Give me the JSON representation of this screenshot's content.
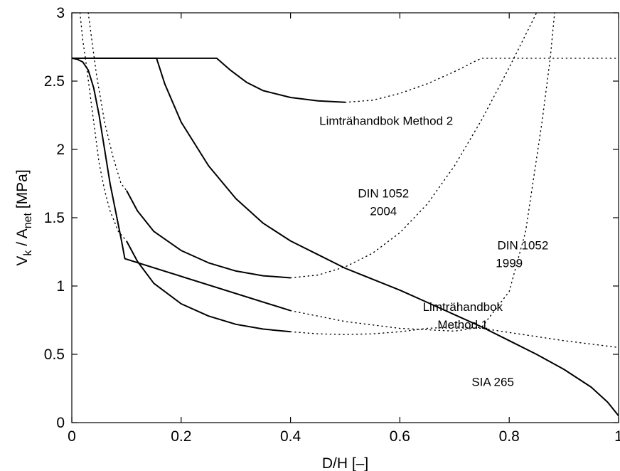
{
  "chart_data": {
    "type": "line",
    "xlabel": "D/H  [–]",
    "ylabel_main": "V",
    "ylabel_sub1": "k",
    "ylabel_mid": " / A",
    "ylabel_sub2": "net",
    "ylabel_unit": "  [MPa]",
    "xlim": [
      0,
      1
    ],
    "ylim": [
      0,
      3
    ],
    "x_ticks": [
      0,
      0.2,
      0.4,
      0.6,
      0.8,
      1
    ],
    "y_ticks": [
      0,
      0.5,
      1,
      1.5,
      2,
      2.5,
      3
    ],
    "grid": false,
    "series": [
      {
        "name": "Limträhandbok Method 2",
        "style": "solid",
        "points": [
          [
            0,
            2.667
          ],
          [
            0.265,
            2.667
          ],
          [
            0.29,
            2.58
          ],
          [
            0.32,
            2.49
          ],
          [
            0.35,
            2.43
          ],
          [
            0.4,
            2.38
          ],
          [
            0.45,
            2.355
          ],
          [
            0.5,
            2.345
          ]
        ]
      },
      {
        "name": "Limträhandbok Method 2",
        "style": "dotted",
        "points": [
          [
            0.5,
            2.345
          ],
          [
            0.55,
            2.36
          ],
          [
            0.6,
            2.41
          ],
          [
            0.65,
            2.48
          ],
          [
            0.7,
            2.57
          ],
          [
            0.74,
            2.65
          ],
          [
            0.75,
            2.667
          ],
          [
            1.0,
            2.667
          ]
        ]
      },
      {
        "name": "Limträhandbok Method 2",
        "style": "dotted",
        "points": [
          [
            0.015,
            3.0
          ],
          [
            0.02,
            2.8
          ],
          [
            0.025,
            2.667
          ]
        ]
      },
      {
        "name": "SIA 265",
        "style": "solid",
        "points": [
          [
            0,
            2.667
          ],
          [
            0.155,
            2.667
          ],
          [
            0.17,
            2.48
          ],
          [
            0.2,
            2.2
          ],
          [
            0.25,
            1.88
          ],
          [
            0.3,
            1.64
          ],
          [
            0.35,
            1.46
          ],
          [
            0.4,
            1.33
          ],
          [
            0.45,
            1.23
          ],
          [
            0.5,
            1.13
          ],
          [
            0.55,
            1.05
          ],
          [
            0.6,
            0.97
          ],
          [
            0.65,
            0.88
          ],
          [
            0.7,
            0.79
          ],
          [
            0.75,
            0.7
          ],
          [
            0.8,
            0.6
          ],
          [
            0.85,
            0.5
          ],
          [
            0.9,
            0.39
          ],
          [
            0.95,
            0.26
          ],
          [
            0.98,
            0.15
          ],
          [
            1.0,
            0.05
          ]
        ]
      },
      {
        "name": "DIN 1052 2004",
        "style": "solid",
        "points": [
          [
            0.1,
            1.7
          ],
          [
            0.12,
            1.55
          ],
          [
            0.15,
            1.4
          ],
          [
            0.2,
            1.26
          ],
          [
            0.25,
            1.17
          ],
          [
            0.3,
            1.11
          ],
          [
            0.35,
            1.075
          ],
          [
            0.4,
            1.06
          ]
        ]
      },
      {
        "name": "DIN 1052 2004",
        "style": "dotted",
        "points": [
          [
            0.4,
            1.06
          ],
          [
            0.45,
            1.08
          ],
          [
            0.5,
            1.14
          ],
          [
            0.55,
            1.24
          ],
          [
            0.6,
            1.39
          ],
          [
            0.65,
            1.6
          ],
          [
            0.7,
            1.88
          ],
          [
            0.75,
            2.22
          ],
          [
            0.8,
            2.6
          ],
          [
            0.84,
            2.92
          ],
          [
            0.85,
            3.0
          ]
        ]
      },
      {
        "name": "DIN 1052 2004",
        "style": "dotted",
        "points": [
          [
            0.03,
            3.0
          ],
          [
            0.035,
            2.85
          ],
          [
            0.045,
            2.55
          ],
          [
            0.06,
            2.2
          ],
          [
            0.075,
            1.95
          ],
          [
            0.09,
            1.75
          ],
          [
            0.1,
            1.7
          ]
        ]
      },
      {
        "name": "DIN 1052 1999",
        "style": "solid",
        "points": [
          [
            0,
            2.667
          ],
          [
            0.01,
            2.66
          ],
          [
            0.02,
            2.64
          ],
          [
            0.03,
            2.58
          ],
          [
            0.04,
            2.45
          ],
          [
            0.05,
            2.25
          ],
          [
            0.06,
            2.0
          ],
          [
            0.07,
            1.75
          ],
          [
            0.08,
            1.55
          ],
          [
            0.09,
            1.35
          ],
          [
            0.097,
            1.2
          ],
          [
            0.4,
            0.82
          ]
        ]
      },
      {
        "name": "DIN 1052 1999",
        "style": "dotted",
        "points": [
          [
            0.4,
            0.82
          ],
          [
            0.5,
            0.74
          ],
          [
            0.6,
            0.69
          ],
          [
            0.7,
            0.67
          ],
          [
            0.75,
            0.7
          ],
          [
            0.8,
            0.96
          ],
          [
            0.83,
            1.4
          ],
          [
            0.86,
            2.2
          ],
          [
            0.875,
            2.667
          ],
          [
            0.883,
            3.0
          ]
        ]
      },
      {
        "name": "Limträhandbok Method 1",
        "style": "solid",
        "points": [
          [
            0.1,
            1.33
          ],
          [
            0.12,
            1.18
          ],
          [
            0.15,
            1.02
          ],
          [
            0.2,
            0.87
          ],
          [
            0.25,
            0.78
          ],
          [
            0.3,
            0.72
          ],
          [
            0.35,
            0.685
          ],
          [
            0.4,
            0.665
          ]
        ]
      },
      {
        "name": "Limträhandbok Method 1",
        "style": "dotted",
        "points": [
          [
            0.4,
            0.665
          ],
          [
            0.45,
            0.65
          ],
          [
            0.5,
            0.645
          ],
          [
            0.55,
            0.65
          ],
          [
            0.6,
            0.665
          ],
          [
            0.65,
            0.69
          ],
          [
            0.7,
            0.7
          ],
          [
            0.75,
            0.69
          ],
          [
            0.8,
            0.66
          ],
          [
            0.9,
            0.6
          ],
          [
            1.0,
            0.55
          ]
        ]
      },
      {
        "name": "Limträhandbok Method 1",
        "style": "dotted",
        "points": [
          [
            0.025,
            2.667
          ],
          [
            0.04,
            2.2
          ],
          [
            0.05,
            1.9
          ],
          [
            0.06,
            1.7
          ],
          [
            0.07,
            1.55
          ],
          [
            0.085,
            1.4
          ],
          [
            0.1,
            1.33
          ]
        ]
      }
    ],
    "annotations": [
      {
        "text": "Limträhandbok Method 2",
        "x": 0.575,
        "y": 2.21
      },
      {
        "text": "DIN 1052",
        "x": 0.57,
        "y": 1.68
      },
      {
        "text": "2004",
        "x": 0.57,
        "y": 1.55
      },
      {
        "text": "DIN 1052",
        "x": 0.825,
        "y": 1.3
      },
      {
        "text": "1999",
        "x": 0.8,
        "y": 1.17
      },
      {
        "text": "Limträhandbok",
        "x": 0.715,
        "y": 0.85
      },
      {
        "text": "Method 1",
        "x": 0.715,
        "y": 0.72
      },
      {
        "text": "SIA 265",
        "x": 0.77,
        "y": 0.3
      }
    ]
  }
}
